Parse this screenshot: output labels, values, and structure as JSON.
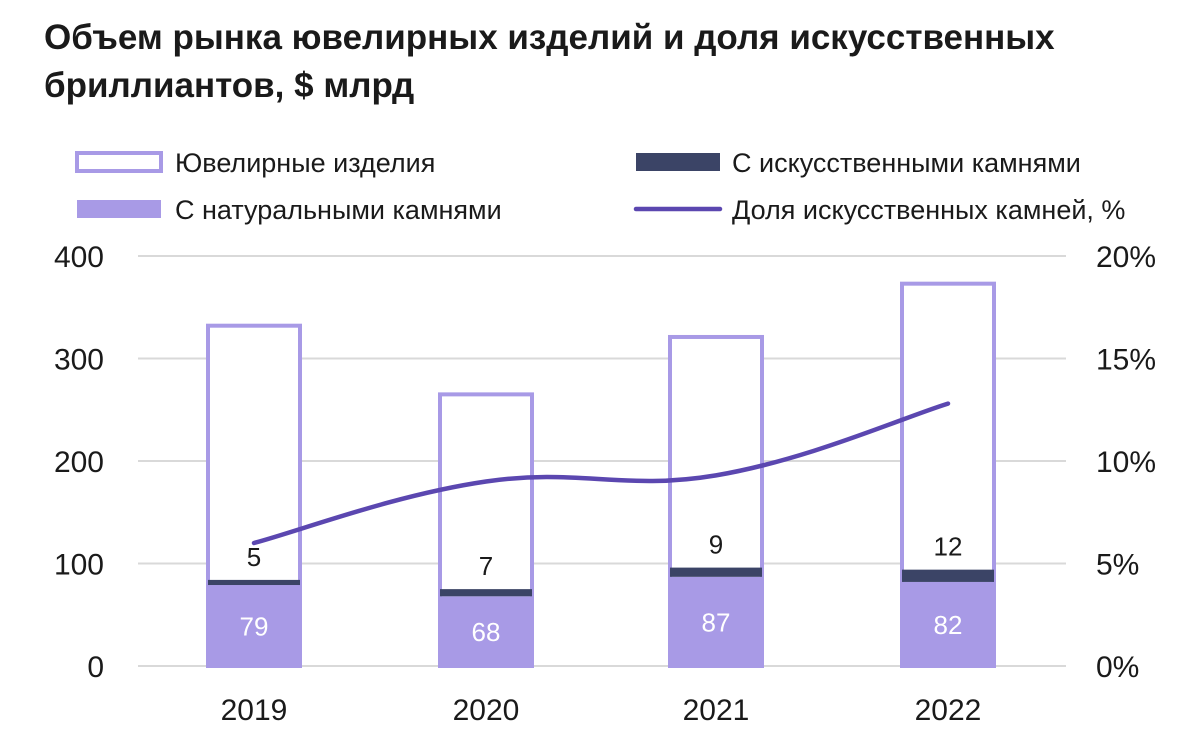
{
  "title": {
    "line1": "Объем рынка ювелирных изделий и доля искусственных",
    "line2": "бриллиантов, $ млрд"
  },
  "legend": {
    "jewelry": "Ювелирные изделия",
    "lab": "С искусственными камнями",
    "natural": "С натуральными камнями",
    "share": "Доля искусственных камней, %"
  },
  "colors": {
    "jewelry_outline": "#a89ae6",
    "natural_fill": "#a89ae6",
    "lab_fill": "#3b4466",
    "share_line": "#5b47b0",
    "grid": "#d9d9d9"
  },
  "chart_data": {
    "type": "bar",
    "categories": [
      "2019",
      "2020",
      "2021",
      "2022"
    ],
    "series": [
      {
        "name": "Ювелирные изделия",
        "values": [
          332,
          265,
          321,
          373
        ]
      },
      {
        "name": "С натуральными камнями",
        "values": [
          79,
          68,
          87,
          82
        ]
      },
      {
        "name": "С искусственными камнями",
        "values": [
          5,
          7,
          9,
          12
        ]
      },
      {
        "name": "Доля искусственных камней, %",
        "axis": "right",
        "type": "line",
        "values": [
          6,
          9,
          9.3,
          12.8
        ]
      }
    ],
    "y_left": {
      "ticks": [
        "0",
        "100",
        "200",
        "300",
        "400"
      ],
      "ylim": [
        0,
        400
      ]
    },
    "y_right": {
      "ticks": [
        "0%",
        "5%",
        "10%",
        "15%",
        "20%"
      ],
      "ylim": [
        0,
        20
      ]
    },
    "grid": true,
    "legend_position": "top"
  }
}
